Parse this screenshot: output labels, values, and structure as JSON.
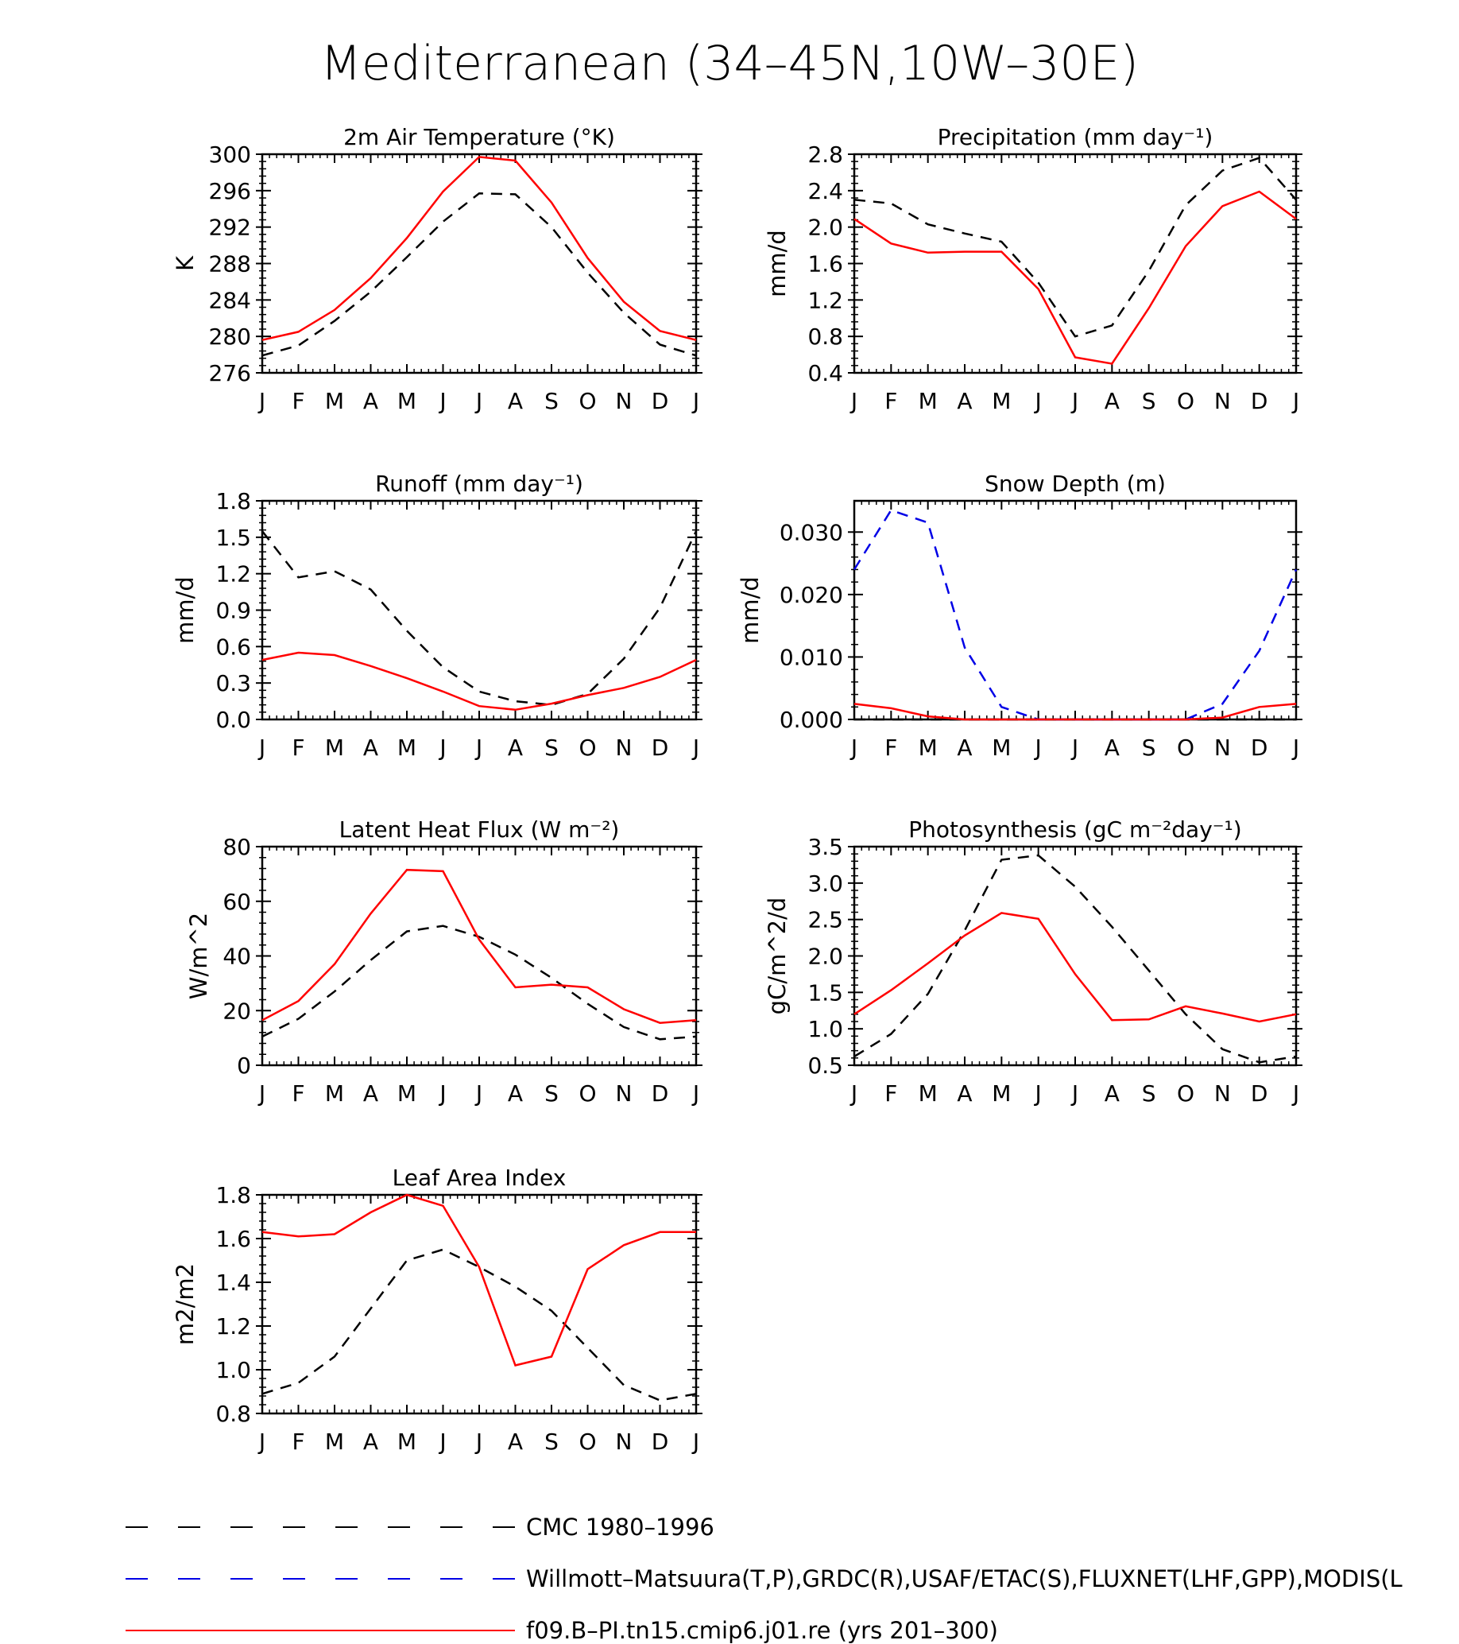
{
  "figure": {
    "title": "Mediterranean (34–45N,10W–30E)"
  },
  "months": [
    "J",
    "F",
    "M",
    "A",
    "M",
    "J",
    "J",
    "A",
    "S",
    "O",
    "N",
    "D",
    "J"
  ],
  "colors": {
    "cmc": "#000000",
    "obs": "#0000e6",
    "model": "#ff0000"
  },
  "legend": [
    {
      "key": "cmc",
      "label": "CMC 1980–1996",
      "dash": true
    },
    {
      "key": "obs",
      "label": "Willmott–Matsuura(T,P),GRDC(R),USAF/ETAC(S),FLUXNET(LHF,GPP),MODIS(L",
      "dash": true
    },
    {
      "key": "model",
      "label": "f09.B–PI.tn15.cmip6.j01.re (yrs 201–300)",
      "dash": false
    }
  ],
  "chart_data": [
    {
      "type": "line",
      "title": "2m Air Temperature (°K)",
      "ylabel": "K",
      "ylim": [
        276,
        300
      ],
      "yticks": [
        276,
        280,
        284,
        288,
        292,
        296,
        300
      ],
      "ydecimals": 0,
      "x": [
        "J",
        "F",
        "M",
        "A",
        "M",
        "J",
        "J",
        "A",
        "S",
        "O",
        "N",
        "D",
        "J"
      ],
      "series": [
        {
          "key": "cmc",
          "values": [
            277.9,
            279.0,
            281.7,
            284.9,
            288.7,
            292.6,
            295.7,
            295.6,
            292.0,
            287.0,
            282.6,
            279.1,
            277.9
          ]
        },
        {
          "key": "model",
          "values": [
            279.6,
            280.5,
            282.9,
            286.4,
            290.8,
            295.9,
            299.7,
            299.3,
            294.7,
            288.6,
            283.8,
            280.6,
            279.6
          ]
        }
      ]
    },
    {
      "type": "line",
      "title": "Precipitation (mm day⁻¹)",
      "ylabel": "mm/d",
      "ylim": [
        0.4,
        2.8
      ],
      "yticks": [
        0.4,
        0.8,
        1.2,
        1.6,
        2.0,
        2.4,
        2.8
      ],
      "ydecimals": 1,
      "x": [
        "J",
        "F",
        "M",
        "A",
        "M",
        "J",
        "J",
        "A",
        "S",
        "O",
        "N",
        "D",
        "J"
      ],
      "series": [
        {
          "key": "cmc",
          "values": [
            2.3,
            2.26,
            2.03,
            1.93,
            1.84,
            1.39,
            0.8,
            0.92,
            1.52,
            2.24,
            2.62,
            2.76,
            2.3
          ]
        },
        {
          "key": "model",
          "values": [
            2.09,
            1.82,
            1.72,
            1.73,
            1.73,
            1.32,
            0.57,
            0.5,
            1.11,
            1.79,
            2.23,
            2.39,
            2.09
          ]
        }
      ]
    },
    {
      "type": "line",
      "title": "Runoff (mm day⁻¹)",
      "ylabel": "mm/d",
      "ylim": [
        0.0,
        1.8
      ],
      "yticks": [
        0.0,
        0.3,
        0.6,
        0.9,
        1.2,
        1.5,
        1.8
      ],
      "ydecimals": 1,
      "x": [
        "J",
        "F",
        "M",
        "A",
        "M",
        "J",
        "J",
        "A",
        "S",
        "O",
        "N",
        "D",
        "J"
      ],
      "series": [
        {
          "key": "cmc",
          "values": [
            1.55,
            1.17,
            1.22,
            1.07,
            0.73,
            0.43,
            0.23,
            0.15,
            0.12,
            0.21,
            0.5,
            0.92,
            1.55
          ]
        },
        {
          "key": "model",
          "values": [
            0.49,
            0.55,
            0.53,
            0.44,
            0.34,
            0.23,
            0.11,
            0.08,
            0.13,
            0.2,
            0.26,
            0.35,
            0.49
          ]
        }
      ]
    },
    {
      "type": "line",
      "title": "Snow Depth (m)",
      "ylabel": "mm/d",
      "ylim": [
        0.0,
        0.035
      ],
      "yticks": [
        0.0,
        0.01,
        0.02,
        0.03
      ],
      "ydecimals": 3,
      "x": [
        "J",
        "F",
        "M",
        "A",
        "M",
        "J",
        "J",
        "A",
        "S",
        "O",
        "N",
        "D",
        "J"
      ],
      "series": [
        {
          "key": "obs",
          "values": [
            0.024,
            0.0335,
            0.0315,
            0.0115,
            0.002,
            0.0,
            0.0,
            0.0,
            0.0,
            0.0,
            0.0025,
            0.011,
            0.024
          ]
        },
        {
          "key": "cmc",
          "values": [
            0.0,
            0.0,
            0.0,
            0.0,
            0.0,
            0.0,
            0.0,
            0.0,
            0.0,
            0.0,
            0.0,
            0.0,
            0.0
          ]
        },
        {
          "key": "model",
          "values": [
            0.0025,
            0.0018,
            0.0005,
            0.0,
            0.0,
            0.0,
            0.0,
            0.0,
            0.0,
            0.0,
            0.0003,
            0.002,
            0.0025
          ]
        }
      ]
    },
    {
      "type": "line",
      "title": "Latent Heat Flux (W m⁻²)",
      "ylabel": "W/m^2",
      "ylim": [
        0,
        80
      ],
      "yticks": [
        0,
        20,
        40,
        60,
        80
      ],
      "ydecimals": 0,
      "x": [
        "J",
        "F",
        "M",
        "A",
        "M",
        "J",
        "J",
        "A",
        "S",
        "O",
        "N",
        "D",
        "J"
      ],
      "series": [
        {
          "key": "cmc",
          "values": [
            10.5,
            17.0,
            27.0,
            38.5,
            49.0,
            51.0,
            47.0,
            40.5,
            32.0,
            22.5,
            14.0,
            9.5,
            10.5
          ]
        },
        {
          "key": "model",
          "values": [
            16.5,
            23.5,
            37.0,
            55.5,
            71.5,
            71.0,
            46.0,
            28.5,
            29.5,
            28.5,
            20.5,
            15.5,
            16.5
          ]
        }
      ]
    },
    {
      "type": "line",
      "title": "Photosynthesis (gC m⁻²day⁻¹)",
      "ylabel": "gC/m^2/d",
      "ylim": [
        0.5,
        3.5
      ],
      "yticks": [
        0.5,
        1.0,
        1.5,
        2.0,
        2.5,
        3.0,
        3.5
      ],
      "ydecimals": 1,
      "x": [
        "J",
        "F",
        "M",
        "A",
        "M",
        "J",
        "J",
        "A",
        "S",
        "O",
        "N",
        "D",
        "J"
      ],
      "series": [
        {
          "key": "cmc",
          "values": [
            0.62,
            0.93,
            1.48,
            2.35,
            3.32,
            3.38,
            2.95,
            2.4,
            1.8,
            1.2,
            0.72,
            0.54,
            0.62
          ]
        },
        {
          "key": "model",
          "values": [
            1.2,
            1.53,
            1.9,
            2.28,
            2.59,
            2.51,
            1.75,
            1.12,
            1.13,
            1.31,
            1.21,
            1.1,
            1.2
          ]
        }
      ]
    },
    {
      "type": "line",
      "title": "Leaf Area Index",
      "ylabel": "m2/m2",
      "ylim": [
        0.8,
        1.8
      ],
      "yticks": [
        0.8,
        1.0,
        1.2,
        1.4,
        1.6,
        1.8
      ],
      "ydecimals": 1,
      "x": [
        "J",
        "F",
        "M",
        "A",
        "M",
        "J",
        "J",
        "A",
        "S",
        "O",
        "N",
        "D",
        "J"
      ],
      "series": [
        {
          "key": "cmc",
          "values": [
            0.89,
            0.94,
            1.06,
            1.28,
            1.5,
            1.55,
            1.47,
            1.38,
            1.27,
            1.1,
            0.93,
            0.86,
            0.89
          ]
        },
        {
          "key": "model",
          "values": [
            1.63,
            1.61,
            1.62,
            1.72,
            1.8,
            1.75,
            1.47,
            1.02,
            1.06,
            1.46,
            1.57,
            1.63,
            1.63
          ]
        }
      ]
    }
  ]
}
